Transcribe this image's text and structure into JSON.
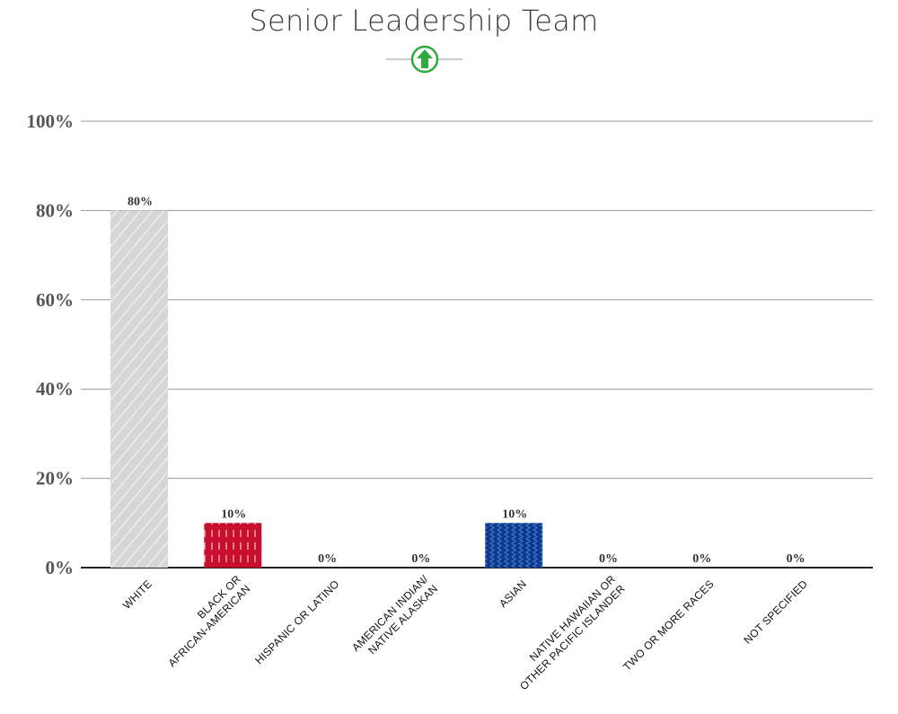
{
  "chart_data": {
    "type": "bar",
    "title": "Senior Leadership Team",
    "trend_indicator": "arrow-up-icon",
    "categories": [
      [
        "WHITE"
      ],
      [
        "BLACK OR",
        "AFRICAN-AMERICAN"
      ],
      [
        "HISPANIC OR LATINO"
      ],
      [
        "AMERICAN INDIAN/",
        "NATIVE ALASKAN"
      ],
      [
        "ASIAN"
      ],
      [
        "NATIVE HAWAIIAN OR",
        "OTHER PACIFIC ISLANDER"
      ],
      [
        "TWO OR MORE RACES"
      ],
      [
        "NOT SPECIFIED"
      ]
    ],
    "values": [
      80,
      10,
      0,
      0,
      10,
      0,
      0,
      0
    ],
    "data_labels": [
      "80%",
      "10%",
      "0%",
      "0%",
      "10%",
      "0%",
      "0%",
      "0%"
    ],
    "bar_styles": [
      "white-diagonal",
      "red-dashes",
      "none",
      "none",
      "blue-zigzag",
      "none",
      "none",
      "none"
    ],
    "ylim": [
      0,
      100
    ],
    "yticks": [
      0,
      20,
      40,
      60,
      80,
      100
    ],
    "ytick_labels": [
      "0%",
      "20%",
      "40%",
      "60%",
      "80%",
      "100%"
    ],
    "grid": true,
    "colors": {
      "white_bar": "#d6d6d6",
      "black_bar": "#c8102e",
      "asian_bar": "#0d3b8e",
      "trend_icon": "#2eaa3f",
      "grid": "#9a9a9a",
      "axis": "#222222"
    }
  }
}
